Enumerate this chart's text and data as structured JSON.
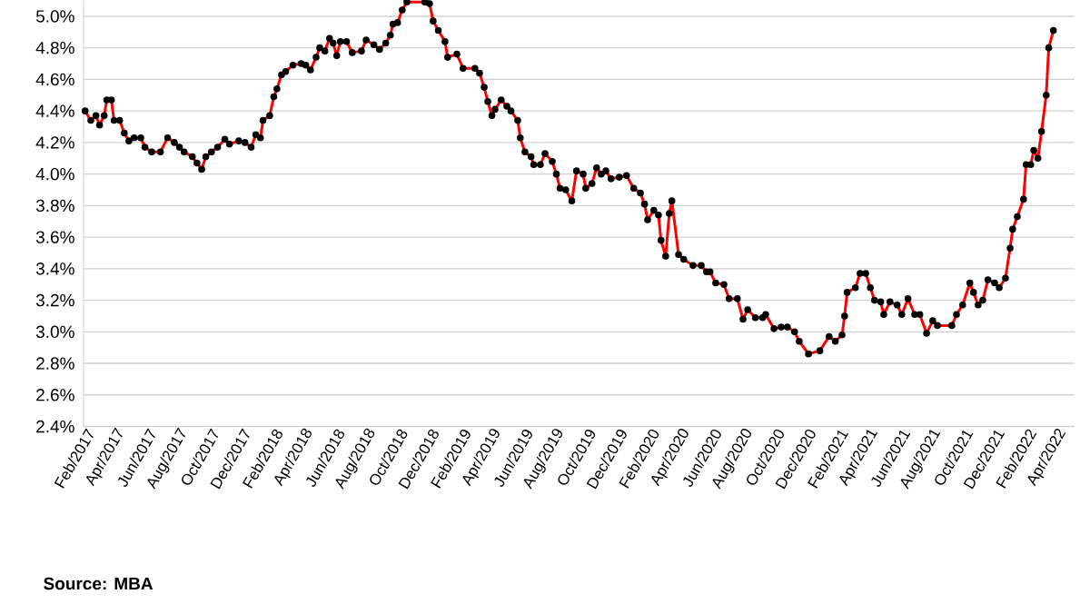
{
  "chart_data": {
    "type": "line",
    "color": "#ff0000",
    "marker": "circle",
    "grid": "y",
    "xlim": [
      "2017-01-18",
      "2022-04-24"
    ],
    "ylim": [
      2.4,
      5.1
    ],
    "yticks": [
      {
        "value": 2.4,
        "label": "2.4%"
      },
      {
        "value": 2.6,
        "label": "2.6%"
      },
      {
        "value": 2.8,
        "label": "2.8%"
      },
      {
        "value": 3.0,
        "label": "3.0%"
      },
      {
        "value": 3.2,
        "label": "3.2%"
      },
      {
        "value": 3.4,
        "label": "3.4%"
      },
      {
        "value": 3.6,
        "label": "3.6%"
      },
      {
        "value": 3.8,
        "label": "3.8%"
      },
      {
        "value": 4.0,
        "label": "4.0%"
      },
      {
        "value": 4.2,
        "label": "4.2%"
      },
      {
        "value": 4.4,
        "label": "4.4%"
      },
      {
        "value": 4.6,
        "label": "4.6%"
      },
      {
        "value": 4.8,
        "label": "4.8%"
      },
      {
        "value": 5.0,
        "label": "5.0%"
      }
    ],
    "xticks": [
      {
        "value": "2017-02-01",
        "label": "Feb/2017"
      },
      {
        "value": "2017-04-01",
        "label": "Apr/2017"
      },
      {
        "value": "2017-06-01",
        "label": "Jun/2017"
      },
      {
        "value": "2017-08-01",
        "label": "Aug/2017"
      },
      {
        "value": "2017-10-01",
        "label": "Oct/2017"
      },
      {
        "value": "2017-12-01",
        "label": "Dec/2017"
      },
      {
        "value": "2018-02-01",
        "label": "Feb/2018"
      },
      {
        "value": "2018-04-01",
        "label": "Apr/2018"
      },
      {
        "value": "2018-06-01",
        "label": "Jun/2018"
      },
      {
        "value": "2018-08-01",
        "label": "Aug/2018"
      },
      {
        "value": "2018-10-01",
        "label": "Oct/2018"
      },
      {
        "value": "2018-12-01",
        "label": "Dec/2018"
      },
      {
        "value": "2019-02-01",
        "label": "Feb/2019"
      },
      {
        "value": "2019-04-01",
        "label": "Apr/2019"
      },
      {
        "value": "2019-06-01",
        "label": "Jun/2019"
      },
      {
        "value": "2019-08-01",
        "label": "Aug/2019"
      },
      {
        "value": "2019-10-01",
        "label": "Oct/2019"
      },
      {
        "value": "2019-12-01",
        "label": "Dec/2019"
      },
      {
        "value": "2020-02-01",
        "label": "Feb/2020"
      },
      {
        "value": "2020-04-01",
        "label": "Apr/2020"
      },
      {
        "value": "2020-06-01",
        "label": "Jun/2020"
      },
      {
        "value": "2020-08-01",
        "label": "Aug/2020"
      },
      {
        "value": "2020-10-01",
        "label": "Oct/2020"
      },
      {
        "value": "2020-12-01",
        "label": "Dec/2020"
      },
      {
        "value": "2021-02-01",
        "label": "Feb/2021"
      },
      {
        "value": "2021-04-01",
        "label": "Apr/2021"
      },
      {
        "value": "2021-06-01",
        "label": "Jun/2021"
      },
      {
        "value": "2021-08-01",
        "label": "Aug/2021"
      },
      {
        "value": "2021-10-01",
        "label": "Oct/2021"
      },
      {
        "value": "2021-12-01",
        "label": "Dec/2021"
      },
      {
        "value": "2022-02-01",
        "label": "Feb/2022"
      },
      {
        "value": "2022-04-01",
        "label": "Apr/2022"
      }
    ],
    "x": [
      "2017-01-21",
      "2017-02-01",
      "2017-02-11",
      "2017-02-18",
      "2017-02-27",
      "2017-03-04",
      "2017-03-13",
      "2017-03-18",
      "2017-03-29",
      "2017-04-07",
      "2017-04-16",
      "2017-04-26",
      "2017-05-09",
      "2017-05-17",
      "2017-05-30",
      "2017-06-16",
      "2017-06-30",
      "2017-07-13",
      "2017-07-23",
      "2017-08-01",
      "2017-08-17",
      "2017-08-26",
      "2017-09-04",
      "2017-09-12",
      "2017-09-23",
      "2017-10-05",
      "2017-10-19",
      "2017-10-28",
      "2017-11-15",
      "2017-11-27",
      "2017-12-09",
      "2017-12-18",
      "2017-12-27",
      "2018-01-01",
      "2018-01-14",
      "2018-01-22",
      "2018-01-28",
      "2018-02-06",
      "2018-02-14",
      "2018-02-28",
      "2018-03-16",
      "2018-03-25",
      "2018-04-03",
      "2018-04-14",
      "2018-04-21",
      "2018-05-01",
      "2018-05-10",
      "2018-05-17",
      "2018-05-24",
      "2018-05-31",
      "2018-06-12",
      "2018-06-23",
      "2018-07-11",
      "2018-07-20",
      "2018-08-04",
      "2018-08-15",
      "2018-08-27",
      "2018-09-05",
      "2018-09-10",
      "2018-09-19",
      "2018-09-28",
      "2018-10-07",
      "2018-11-11",
      "2018-11-20",
      "2018-11-27",
      "2018-12-07",
      "2018-12-20",
      "2018-12-25",
      "2019-01-12",
      "2019-01-24",
      "2019-02-16",
      "2019-02-25",
      "2019-03-06",
      "2019-03-13",
      "2019-03-21",
      "2019-03-27",
      "2019-04-08",
      "2019-04-19",
      "2019-04-27",
      "2019-05-10",
      "2019-05-15",
      "2019-05-24",
      "2019-06-05",
      "2019-06-10",
      "2019-06-23",
      "2019-07-02",
      "2019-07-16",
      "2019-07-24",
      "2019-07-31",
      "2019-08-11",
      "2019-08-23",
      "2019-09-01",
      "2019-09-14",
      "2019-09-19",
      "2019-10-01",
      "2019-10-10",
      "2019-10-19",
      "2019-10-28",
      "2019-11-07",
      "2019-11-23",
      "2019-12-07",
      "2019-12-21",
      "2020-01-03",
      "2020-01-11",
      "2020-01-17",
      "2020-01-29",
      "2020-02-07",
      "2020-02-12",
      "2020-02-21",
      "2020-02-28",
      "2020-03-04",
      "2020-03-17",
      "2020-03-27",
      "2020-04-14",
      "2020-04-30",
      "2020-05-10",
      "2020-05-17",
      "2020-05-28",
      "2020-06-13",
      "2020-06-23",
      "2020-07-09",
      "2020-07-20",
      "2020-07-29",
      "2020-08-13",
      "2020-08-27",
      "2020-09-02",
      "2020-09-18",
      "2020-10-02",
      "2020-10-14",
      "2020-10-28",
      "2020-11-06",
      "2020-11-24",
      "2020-12-16",
      "2021-01-03",
      "2021-01-15",
      "2021-01-28",
      "2021-02-02",
      "2021-02-07",
      "2021-02-23",
      "2021-03-04",
      "2021-03-15",
      "2021-03-24",
      "2021-04-01",
      "2021-04-13",
      "2021-04-19",
      "2021-05-01",
      "2021-05-15",
      "2021-05-24",
      "2021-06-05",
      "2021-06-18",
      "2021-06-28",
      "2021-07-11",
      "2021-07-23",
      "2021-08-01",
      "2021-08-29",
      "2021-09-07",
      "2021-09-19",
      "2021-10-03",
      "2021-10-10",
      "2021-10-19",
      "2021-10-28",
      "2021-11-07",
      "2021-11-20",
      "2021-11-29",
      "2021-12-11",
      "2021-12-20",
      "2021-12-25",
      "2022-01-03",
      "2022-01-15",
      "2022-01-20",
      "2022-01-29",
      "2022-02-04",
      "2022-02-12",
      "2022-02-19",
      "2022-02-28",
      "2022-03-05",
      "2022-03-14"
    ],
    "values": [
      4.4,
      4.34,
      4.37,
      4.31,
      4.37,
      4.47,
      4.47,
      4.34,
      4.34,
      4.26,
      4.21,
      4.23,
      4.23,
      4.17,
      4.14,
      4.14,
      4.23,
      4.2,
      4.17,
      4.14,
      4.11,
      4.07,
      4.03,
      4.11,
      4.14,
      4.17,
      4.22,
      4.19,
      4.21,
      4.2,
      4.17,
      4.25,
      4.23,
      4.34,
      4.37,
      4.49,
      4.54,
      4.63,
      4.65,
      4.69,
      4.7,
      4.69,
      4.66,
      4.74,
      4.8,
      4.78,
      4.86,
      4.83,
      4.75,
      4.84,
      4.84,
      4.77,
      4.78,
      4.85,
      4.82,
      4.79,
      4.83,
      4.88,
      4.95,
      4.96,
      5.04,
      5.09,
      5.09,
      5.08,
      4.97,
      4.91,
      4.84,
      4.74,
      4.76,
      4.67,
      4.67,
      4.64,
      4.55,
      4.46,
      4.37,
      4.41,
      4.47,
      4.43,
      4.4,
      4.34,
      4.23,
      4.14,
      4.11,
      4.06,
      4.06,
      4.13,
      4.08,
      4.0,
      3.91,
      3.9,
      3.83,
      4.02,
      4.0,
      3.91,
      3.94,
      4.04,
      4.0,
      4.02,
      3.97,
      3.98,
      3.99,
      3.91,
      3.88,
      3.81,
      3.71,
      3.77,
      3.74,
      3.58,
      3.48,
      3.75,
      3.83,
      3.49,
      3.46,
      3.42,
      3.42,
      3.38,
      3.38,
      3.31,
      3.3,
      3.21,
      3.21,
      3.08,
      3.14,
      3.09,
      3.09,
      3.11,
      3.02,
      3.03,
      3.03,
      3.0,
      2.94,
      2.86,
      2.88,
      2.97,
      2.94,
      2.98,
      3.1,
      3.25,
      3.28,
      3.37,
      3.37,
      3.28,
      3.2,
      3.19,
      3.11,
      3.19,
      3.17,
      3.11,
      3.21,
      3.11,
      3.11,
      2.99,
      3.07,
      3.04,
      3.04,
      3.11,
      3.17,
      3.31,
      3.25,
      3.17,
      3.2,
      3.33,
      3.31,
      3.28,
      3.34,
      3.53,
      3.65,
      3.73,
      3.84,
      4.06,
      4.06,
      4.15,
      4.1,
      4.27,
      4.5,
      4.8,
      4.91
    ],
    "annotations": [
      "Source: MBA"
    ]
  }
}
